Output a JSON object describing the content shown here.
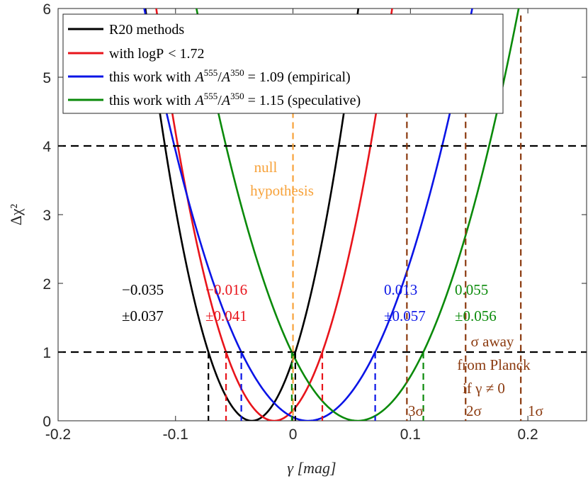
{
  "chart_data": {
    "type": "line",
    "xlabel": "γ [mag]",
    "ylabel": "Δχ²",
    "xlim": [
      -0.2,
      0.25
    ],
    "ylim": [
      0,
      6
    ],
    "xticks": [
      -0.2,
      -0.1,
      0,
      0.1,
      0.2
    ],
    "xtick_labels": [
      "-0.2",
      "-0.1",
      "0",
      "0.1",
      "0.2"
    ],
    "yticks": [
      0,
      1,
      2,
      3,
      4,
      5,
      6
    ],
    "ytick_labels": [
      "0",
      "1",
      "2",
      "3",
      "4",
      "5",
      "6"
    ],
    "grid": false,
    "legend_position": "top-left",
    "series": [
      {
        "name": "R20 methods",
        "legend": "R20 methods",
        "color": "#000000",
        "center": -0.035,
        "sigma": 0.037,
        "value_label": "−0.035",
        "error_label": "±0.037"
      },
      {
        "name": "with logP < 1.72",
        "legend": "with logP < 1.72",
        "color": "#e8141b",
        "center": -0.016,
        "sigma": 0.041,
        "value_label": "−0.016",
        "error_label": "±0.041"
      },
      {
        "name": "this work with A555/A350 = 1.09 (empirical)",
        "legend": "this work with A^555/A^350 = 1.09 (empirical)",
        "color": "#0a14e6",
        "center": 0.013,
        "sigma": 0.057,
        "value_label": "0.013",
        "error_label": "±0.057"
      },
      {
        "name": "this work with A555/A350 = 1.15 (speculative)",
        "legend": "this work with A^555/A^350 = 1.15 (speculative)",
        "color": "#0a8a0a",
        "center": 0.055,
        "sigma": 0.056,
        "value_label": "0.055",
        "error_label": "±0.056"
      }
    ],
    "horizontal_lines": [
      1,
      4
    ],
    "null_hypothesis": {
      "x": 0,
      "color": "#f7a23a",
      "label_line1": "null",
      "label_line2": "hypothesis"
    },
    "planck_lines": {
      "color": "#8b3a0f",
      "x": [
        0.097,
        0.147,
        0.194
      ],
      "labels": [
        "3σ",
        "2σ",
        "1σ"
      ],
      "annotation_lines": [
        "σ away",
        "from Planck",
        "if γ ≠ 0"
      ]
    },
    "legend_labels": {
      "r20": "R20 methods",
      "logp_prefix": "with logP",
      "logp_suffix": "< 1.72",
      "tw_prefix": "this work with",
      "ratio_a": "A",
      "ratio_num_sup": "555",
      "ratio_den_sup": "350",
      "emp_value": " = 1.09 (empirical)",
      "spec_value": " = 1.15 (speculative)"
    }
  }
}
